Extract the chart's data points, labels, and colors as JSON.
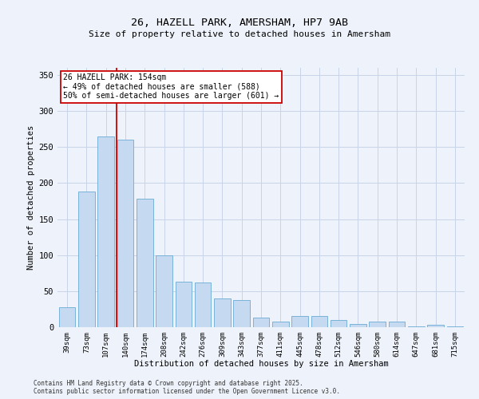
{
  "title": "26, HAZELL PARK, AMERSHAM, HP7 9AB",
  "subtitle": "Size of property relative to detached houses in Amersham",
  "xlabel": "Distribution of detached houses by size in Amersham",
  "ylabel": "Number of detached properties",
  "categories": [
    "39sqm",
    "73sqm",
    "107sqm",
    "140sqm",
    "174sqm",
    "208sqm",
    "242sqm",
    "276sqm",
    "309sqm",
    "343sqm",
    "377sqm",
    "411sqm",
    "445sqm",
    "478sqm",
    "512sqm",
    "546sqm",
    "580sqm",
    "614sqm",
    "647sqm",
    "681sqm",
    "715sqm"
  ],
  "values": [
    28,
    188,
    265,
    260,
    178,
    100,
    63,
    62,
    40,
    38,
    13,
    8,
    15,
    15,
    10,
    4,
    8,
    8,
    1,
    3,
    1
  ],
  "bar_color": "#c5d9f0",
  "bar_edge_color": "#6aaad4",
  "grid_color": "#c8d4e8",
  "background_color": "#eef2fa",
  "vline_x": 2.55,
  "vline_color": "#cc0000",
  "annotation_text": "26 HAZELL PARK: 154sqm\n← 49% of detached houses are smaller (588)\n50% of semi-detached houses are larger (601) →",
  "annotation_box_facecolor": "#ffffff",
  "annotation_box_edgecolor": "#cc0000",
  "ylim": [
    0,
    360
  ],
  "yticks": [
    0,
    50,
    100,
    150,
    200,
    250,
    300,
    350
  ],
  "footer_line1": "Contains HM Land Registry data © Crown copyright and database right 2025.",
  "footer_line2": "Contains public sector information licensed under the Open Government Licence v3.0."
}
